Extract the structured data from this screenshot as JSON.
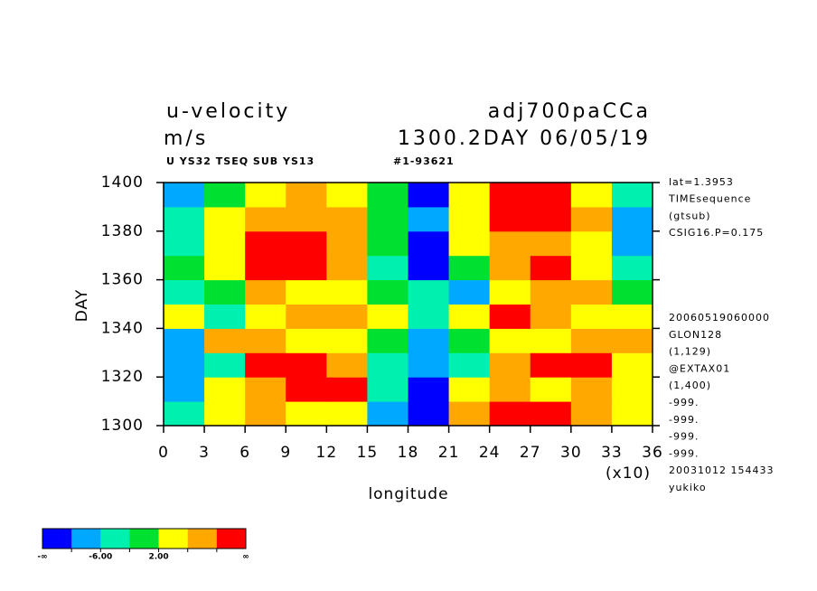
{
  "chart_data": {
    "type": "heatmap",
    "title": "u-velocity",
    "experiment": "adj700paCCa",
    "units": "m/s",
    "subtitle": "1300.2DAY 06/05/19",
    "info_left": "U YS32 TSEQ SUB YS13",
    "info_right": "#1-93621",
    "x_label": "longitude",
    "x_multiplier": "(x10)",
    "y_label": "DAY",
    "x": [
      0,
      3,
      6,
      9,
      12,
      15,
      18,
      21,
      24,
      27,
      30,
      33,
      36
    ],
    "y": [
      1300,
      1310,
      1320,
      1330,
      1340,
      1350,
      1360,
      1370,
      1380,
      1390,
      1400
    ],
    "z": [
      [
        -6,
        4,
        8,
        4,
        2,
        -8,
        -12,
        6,
        12,
        10,
        8,
        2
      ],
      [
        -10,
        2,
        6,
        10,
        12,
        -4,
        -12,
        2,
        8,
        4,
        8,
        2
      ],
      [
        -10,
        -6,
        10,
        12,
        6,
        -6,
        -10,
        -4,
        6,
        10,
        12,
        4
      ],
      [
        -8,
        6,
        8,
        4,
        2,
        -2,
        -8,
        -2,
        4,
        2,
        6,
        6
      ],
      [
        2,
        -4,
        4,
        6,
        8,
        2,
        -4,
        2,
        12,
        8,
        4,
        2
      ],
      [
        -4,
        -2,
        6,
        4,
        4,
        0,
        -6,
        -8,
        4,
        8,
        6,
        0
      ],
      [
        -2,
        2,
        10,
        12,
        8,
        -4,
        -12,
        0,
        6,
        10,
        2,
        -4
      ],
      [
        -4,
        4,
        10,
        12,
        6,
        -2,
        -12,
        2,
        8,
        6,
        4,
        -10
      ],
      [
        -6,
        2,
        6,
        8,
        6,
        0,
        -10,
        2,
        12,
        12,
        6,
        -8
      ],
      [
        -8,
        -2,
        4,
        8,
        4,
        -2,
        -12,
        4,
        12,
        10,
        4,
        -6
      ]
    ],
    "xlim": [
      0,
      36
    ],
    "ylim": [
      1300,
      1400
    ],
    "xticks": [
      0,
      3,
      6,
      9,
      12,
      15,
      18,
      21,
      24,
      27,
      30,
      33,
      36
    ],
    "yticks": [
      1300,
      1320,
      1340,
      1360,
      1380,
      1400
    ],
    "colorbar": {
      "colors": [
        "#0000ff",
        "#00a8ff",
        "#00f0b0",
        "#00e030",
        "#ffff00",
        "#ffa800",
        "#ff0000"
      ],
      "levels": [
        -10,
        -6,
        -2,
        2,
        6,
        10
      ],
      "low_label": "-∞",
      "high_label": "∞",
      "ticks": [
        {
          "value": -6,
          "label": "-6.00"
        },
        {
          "value": 2,
          "label": "2.00"
        }
      ]
    },
    "notes_top": [
      "lat=1.3953",
      "TIMEsequence",
      "(gtsub)",
      "CSIG16.P=0.175"
    ],
    "notes_bottom": [
      "20060519060000",
      "GLON128",
      "(1,129)",
      "@EXTAX01",
      "(1,400)",
      "-999.",
      "-999.",
      "-999.",
      "-999.",
      "20031012 154433",
      "yukiko"
    ]
  }
}
